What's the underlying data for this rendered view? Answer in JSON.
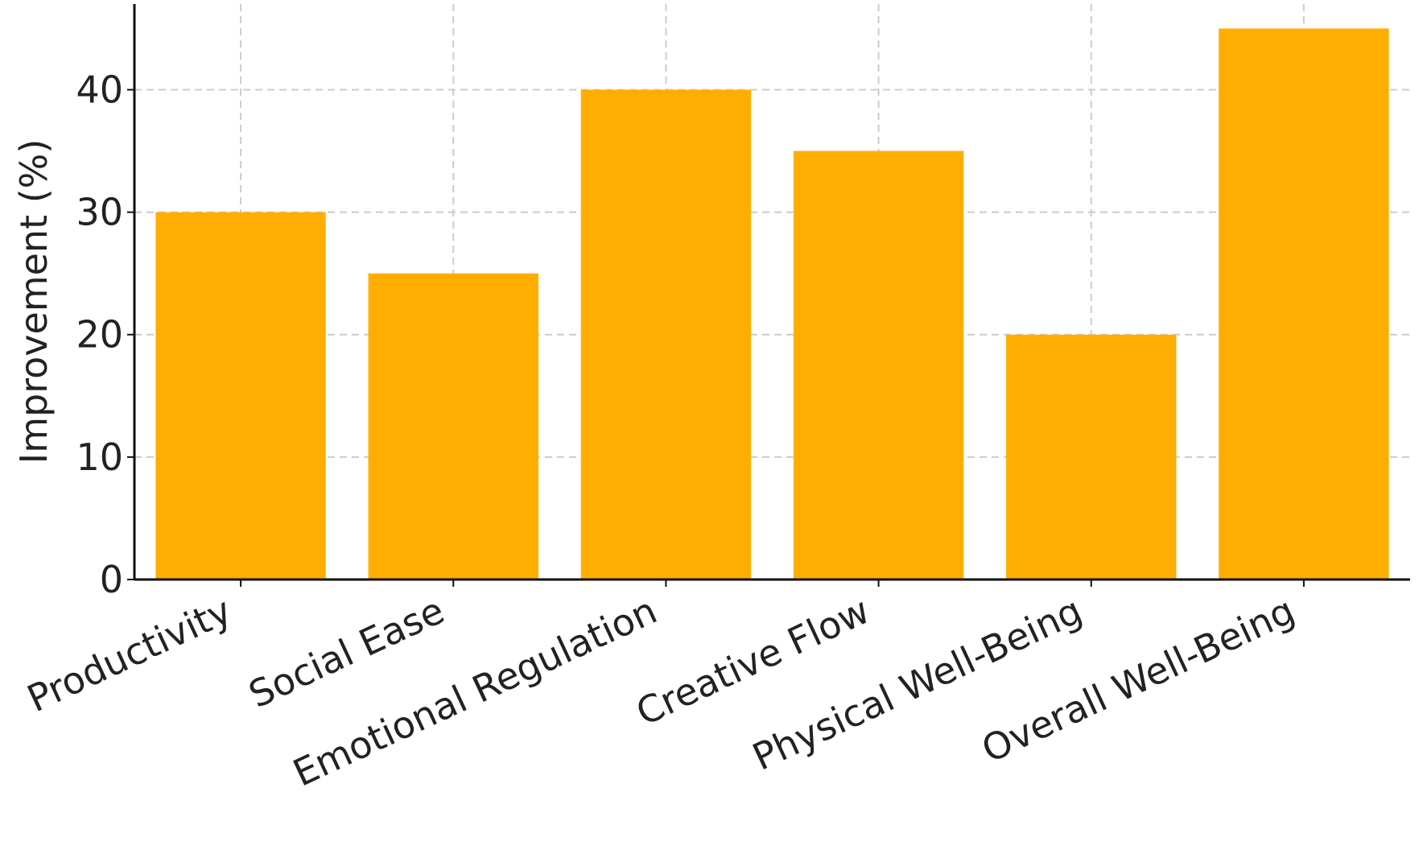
{
  "chart_data": {
    "type": "bar",
    "categories": [
      "Productivity",
      "Social Ease",
      "Emotional Regulation",
      "Creative Flow",
      "Physical Well-Being",
      "Overall Well-Being"
    ],
    "values": [
      30,
      25,
      40,
      35,
      20,
      45
    ],
    "title": "",
    "xlabel": "",
    "ylabel": "Improvement (%)",
    "ylim": [
      0,
      47
    ],
    "yticks": [
      0,
      10,
      20,
      30,
      40
    ],
    "grid": true,
    "bar_color": "#FFAE00"
  }
}
